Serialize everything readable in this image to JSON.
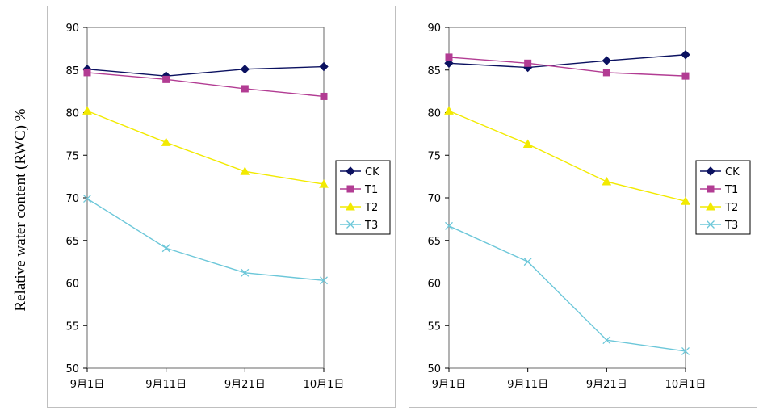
{
  "y_axis_label": "Relative water content (RWC) %",
  "colors": {
    "CK": "#0b1160",
    "T1": "#b23c93",
    "T2": "#f2ea00",
    "T3": "#6cc7d9"
  },
  "chart_data": [
    {
      "type": "line",
      "title": "",
      "xlabel": "",
      "ylabel": "Relative water content (RWC) %",
      "categories": [
        "9月1日",
        "9月11日",
        "9月21日",
        "10月1日"
      ],
      "ylim": [
        50,
        90
      ],
      "yticks": [
        50,
        55,
        60,
        65,
        70,
        75,
        80,
        85,
        90
      ],
      "legend": "right",
      "series": [
        {
          "name": "CK",
          "marker": "diamond",
          "values": [
            85.1,
            84.3,
            85.1,
            85.4
          ]
        },
        {
          "name": "T1",
          "marker": "square",
          "values": [
            84.7,
            83.9,
            82.8,
            81.9
          ]
        },
        {
          "name": "T2",
          "marker": "triangle",
          "values": [
            80.2,
            76.5,
            73.1,
            71.6
          ]
        },
        {
          "name": "T3",
          "marker": "x",
          "values": [
            69.9,
            64.1,
            61.2,
            60.3
          ]
        }
      ]
    },
    {
      "type": "line",
      "title": "",
      "xlabel": "",
      "ylabel": "",
      "categories": [
        "9月1日",
        "9月11日",
        "9月21日",
        "10月1日"
      ],
      "ylim": [
        50,
        90
      ],
      "yticks": [
        50,
        55,
        60,
        65,
        70,
        75,
        80,
        85,
        90
      ],
      "legend": "right",
      "series": [
        {
          "name": "CK",
          "marker": "diamond",
          "values": [
            85.8,
            85.3,
            86.1,
            86.8
          ]
        },
        {
          "name": "T1",
          "marker": "square",
          "values": [
            86.5,
            85.8,
            84.7,
            84.3
          ]
        },
        {
          "name": "T2",
          "marker": "triangle",
          "values": [
            80.2,
            76.3,
            71.9,
            69.6
          ]
        },
        {
          "name": "T3",
          "marker": "x",
          "values": [
            66.7,
            62.5,
            53.3,
            52.0
          ]
        }
      ]
    }
  ]
}
